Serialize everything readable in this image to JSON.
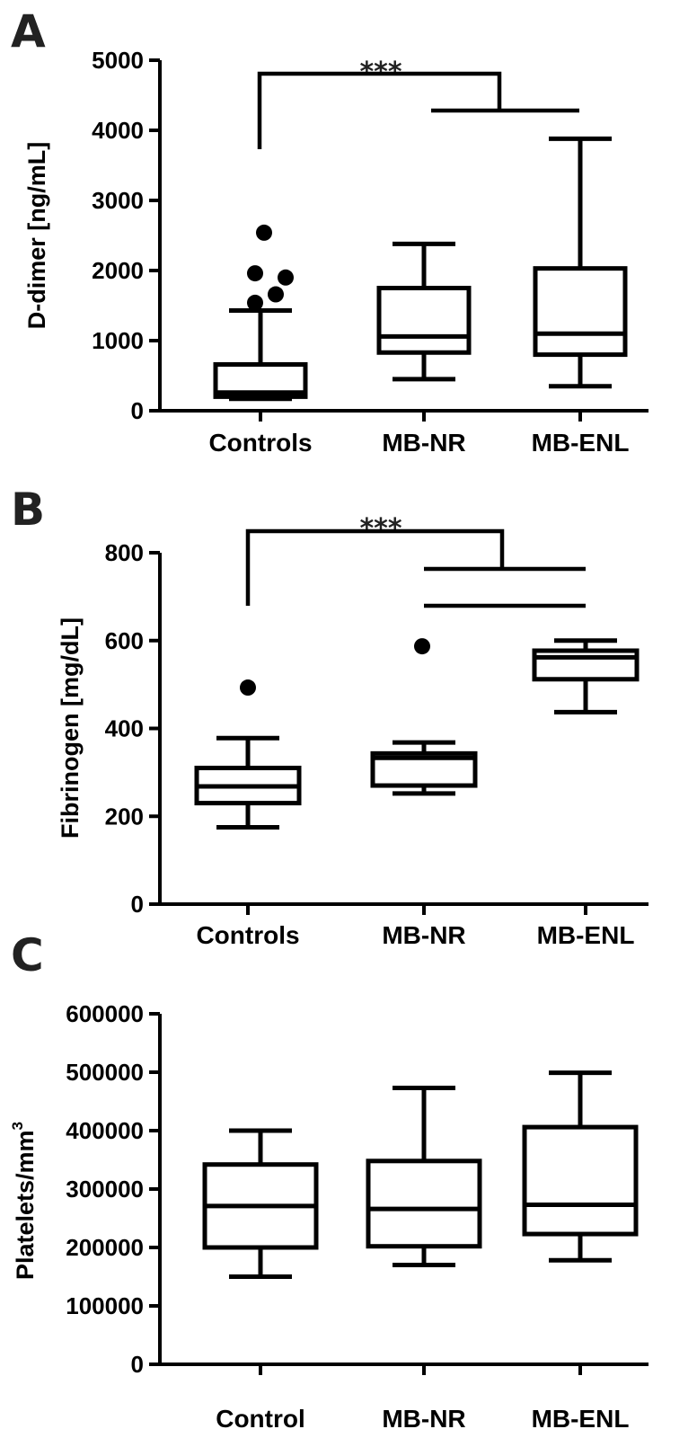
{
  "chart_data": [
    {
      "type": "box",
      "panel_label": "A",
      "ylabel": "D-dimer [ng/mL]",
      "categories": [
        "Controls",
        "MB-NR",
        "MB-ENL"
      ],
      "ylim": [
        0,
        5000
      ],
      "yticks": [
        0,
        1000,
        2000,
        3000,
        4000,
        5000
      ],
      "boxes": [
        {
          "category": "Controls",
          "whisker_low": 170,
          "q1": 200,
          "median": 260,
          "q3": 660,
          "whisker_high": 1430,
          "outliers": [
            1540,
            1660,
            1900,
            1960,
            2540
          ]
        },
        {
          "category": "MB-NR",
          "whisker_low": 450,
          "q1": 830,
          "median": 1060,
          "q3": 1750,
          "whisker_high": 2380,
          "outliers": []
        },
        {
          "category": "MB-ENL",
          "whisker_low": 350,
          "q1": 800,
          "median": 1100,
          "q3": 2030,
          "whisker_high": 3880,
          "outliers": []
        }
      ],
      "significance": {
        "label": "***",
        "comparison": "Controls vs MB-NR, MB-ENL"
      }
    },
    {
      "type": "box",
      "panel_label": "B",
      "ylabel": "Fibrinogen [mg/dL]",
      "categories": [
        "Controls",
        "MB-NR",
        "MB-ENL"
      ],
      "ylim": [
        0,
        800
      ],
      "yticks": [
        0,
        200,
        400,
        600,
        800
      ],
      "boxes": [
        {
          "category": "Controls",
          "whisker_low": 175,
          "q1": 230,
          "median": 268,
          "q3": 310,
          "whisker_high": 378,
          "outliers": [
            493
          ]
        },
        {
          "category": "MB-NR",
          "whisker_low": 252,
          "q1": 270,
          "median": 333,
          "q3": 343,
          "whisker_high": 368,
          "outliers": [
            587
          ]
        },
        {
          "category": "MB-ENL",
          "whisker_low": 437,
          "q1": 512,
          "median": 562,
          "q3": 577,
          "whisker_high": 600,
          "outliers": []
        }
      ],
      "significance": {
        "label": "***",
        "comparison": "Controls vs MB-NR, MB-ENL; MB-NR vs MB-ENL"
      }
    },
    {
      "type": "box",
      "panel_label": "C",
      "ylabel": "Platelets/mm",
      "ylabel_sup": "3",
      "categories": [
        "Control",
        "MB-NR",
        "MB-ENL"
      ],
      "ylim": [
        0,
        600000
      ],
      "yticks": [
        0,
        100000,
        200000,
        300000,
        400000,
        500000,
        600000
      ],
      "boxes": [
        {
          "category": "Control",
          "whisker_low": 150000,
          "q1": 200000,
          "median": 271000,
          "q3": 342000,
          "whisker_high": 400000,
          "outliers": []
        },
        {
          "category": "MB-NR",
          "whisker_low": 170000,
          "q1": 202000,
          "median": 266000,
          "q3": 348000,
          "whisker_high": 473000,
          "outliers": []
        },
        {
          "category": "MB-ENL",
          "whisker_low": 178000,
          "q1": 223000,
          "median": 273000,
          "q3": 406000,
          "whisker_high": 499000,
          "outliers": []
        }
      ]
    }
  ]
}
